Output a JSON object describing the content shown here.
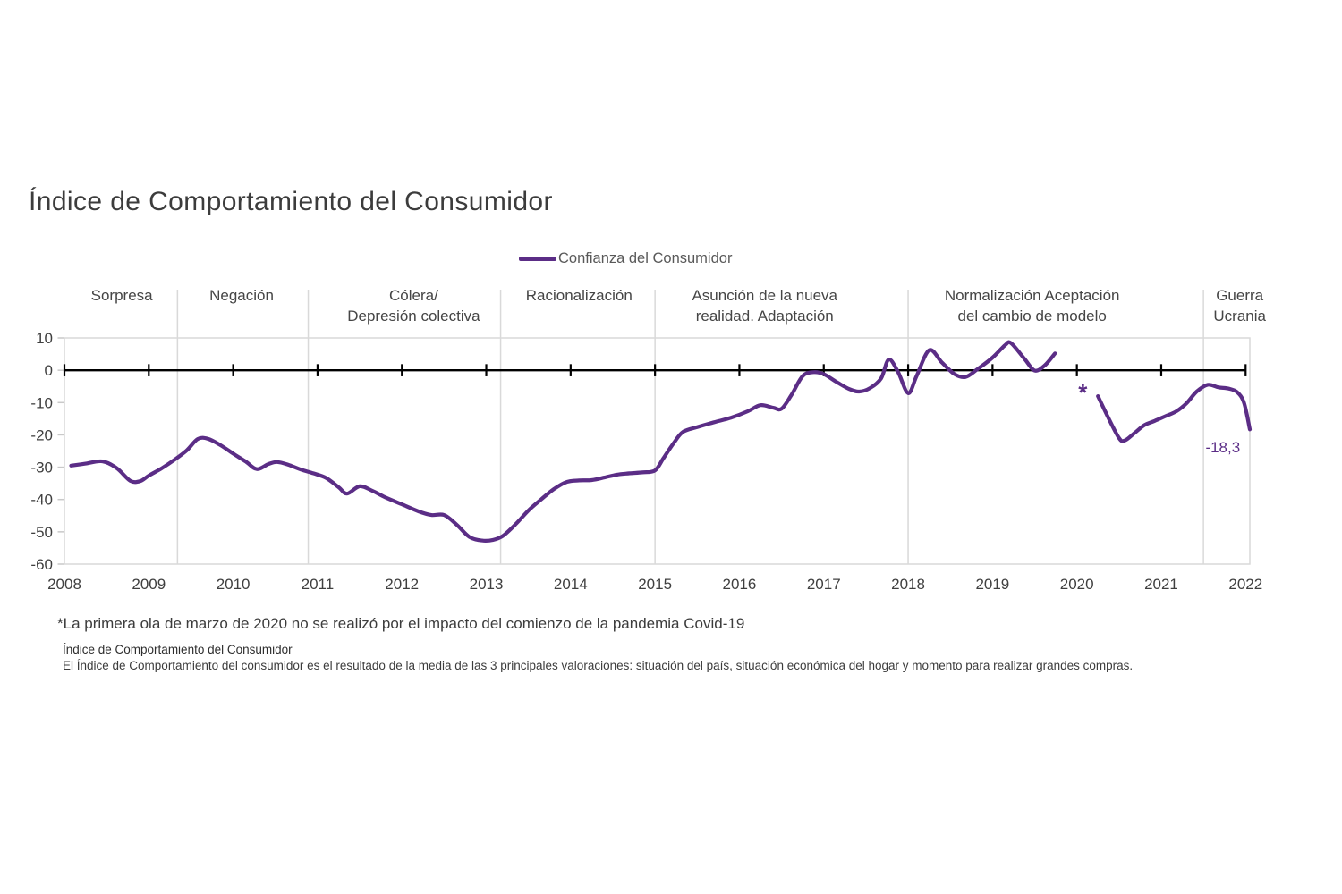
{
  "title": "Índice de Comportamiento del Consumidor",
  "legend": {
    "label": "Confianza del Consumidor"
  },
  "colors": {
    "line": "#5b2d86",
    "grid": "#d9d9d9",
    "tick": "#c9c9c9",
    "axis": "#000000",
    "label_text": "#3f3f3f"
  },
  "footnotes": {
    "covid_note": "*La primera ola de marzo de 2020 no se realizó por el impacto del comienzo de la pandemia Covid-19",
    "definition_title": "Índice de Comportamiento del Consumidor",
    "definition_body": "El Índice de Comportamiento del consumidor es el resultado de la media de las 3 principales valoraciones: situación del país, situación económica del hogar y momento para realizar grandes compras."
  },
  "chart_data": {
    "type": "line",
    "title": "Índice de Comportamiento del Consumidor",
    "xlabel": "",
    "ylabel": "",
    "x_range": [
      2008,
      2022.05
    ],
    "y_range": [
      -60,
      10
    ],
    "y_ticks": [
      10,
      0,
      -10,
      -20,
      -30,
      -40,
      -50,
      -60
    ],
    "x_ticks": [
      2008,
      2009,
      2010,
      2011,
      2012,
      2013,
      2014,
      2015,
      2016,
      2017,
      2018,
      2019,
      2020,
      2021,
      2022
    ],
    "grid": "vertical-phase-boundaries-only",
    "legend_position": "top-center",
    "last_value_label": "-18,3",
    "phases": [
      {
        "label_lines": [
          "Sorpresa"
        ],
        "start": 2008,
        "end": 2009.34,
        "label_center": 2008.68
      },
      {
        "label_lines": [
          "Negación"
        ],
        "start": 2009.34,
        "end": 2010.89,
        "label_center": 2010.1
      },
      {
        "label_lines": [
          "Cólera/",
          "Depresión colectiva"
        ],
        "start": 2010.89,
        "end": 2013.17,
        "label_center": 2012.14
      },
      {
        "label_lines": [
          "Racionalización"
        ],
        "start": 2013.17,
        "end": 2015.0,
        "label_center": 2014.1
      },
      {
        "label_lines": [
          "Asunción de la nueva",
          "realidad. Adaptación"
        ],
        "start": 2015.0,
        "end": 2018.0,
        "label_center": 2016.3
      },
      {
        "label_lines": [
          "Normalización Aceptación",
          "del cambio de modelo"
        ],
        "start": 2018.0,
        "end": 2021.5,
        "label_center": 2019.47
      },
      {
        "label_lines": [
          "Guerra",
          "Ucrania"
        ],
        "start": 2021.5,
        "end": 2022.05,
        "label_center": 2021.93
      }
    ],
    "series": [
      {
        "name": "Confianza del Consumidor",
        "color": "#5b2d86",
        "segments": [
          [
            [
              2008.08,
              -29.5
            ],
            [
              2008.25,
              -28.9
            ],
            [
              2008.45,
              -28.2
            ],
            [
              2008.62,
              -30.3
            ],
            [
              2008.78,
              -34.2
            ],
            [
              2008.9,
              -34.3
            ],
            [
              2009.0,
              -32.6
            ],
            [
              2009.15,
              -30.4
            ],
            [
              2009.3,
              -27.8
            ],
            [
              2009.45,
              -24.8
            ],
            [
              2009.58,
              -21.3
            ],
            [
              2009.7,
              -21.2
            ],
            [
              2009.85,
              -23.2
            ],
            [
              2010.0,
              -25.8
            ],
            [
              2010.15,
              -28.3
            ],
            [
              2010.28,
              -30.6
            ],
            [
              2010.42,
              -29.0
            ],
            [
              2010.52,
              -28.4
            ],
            [
              2010.65,
              -29.2
            ],
            [
              2010.8,
              -30.7
            ],
            [
              2010.95,
              -31.9
            ],
            [
              2011.1,
              -33.3
            ],
            [
              2011.25,
              -36.2
            ],
            [
              2011.35,
              -38.2
            ],
            [
              2011.5,
              -35.9
            ],
            [
              2011.65,
              -37.3
            ],
            [
              2011.8,
              -39.3
            ],
            [
              2012.0,
              -41.5
            ],
            [
              2012.2,
              -43.7
            ],
            [
              2012.35,
              -44.8
            ],
            [
              2012.5,
              -44.8
            ],
            [
              2012.65,
              -47.8
            ],
            [
              2012.8,
              -51.6
            ],
            [
              2012.95,
              -52.7
            ],
            [
              2013.08,
              -52.5
            ],
            [
              2013.2,
              -51.2
            ],
            [
              2013.35,
              -47.6
            ],
            [
              2013.5,
              -43.4
            ],
            [
              2013.65,
              -40.0
            ],
            [
              2013.8,
              -36.8
            ],
            [
              2013.95,
              -34.6
            ],
            [
              2014.1,
              -34.1
            ],
            [
              2014.25,
              -34.0
            ],
            [
              2014.4,
              -33.2
            ],
            [
              2014.55,
              -32.3
            ],
            [
              2014.7,
              -31.9
            ],
            [
              2014.85,
              -31.6
            ],
            [
              2015.0,
              -31.0
            ],
            [
              2015.1,
              -27.2
            ],
            [
              2015.22,
              -22.6
            ],
            [
              2015.33,
              -19.1
            ],
            [
              2015.5,
              -17.6
            ],
            [
              2015.7,
              -16.1
            ],
            [
              2015.9,
              -14.7
            ],
            [
              2016.1,
              -12.7
            ],
            [
              2016.25,
              -10.8
            ],
            [
              2016.4,
              -11.6
            ],
            [
              2016.5,
              -11.9
            ],
            [
              2016.62,
              -7.5
            ],
            [
              2016.75,
              -1.8
            ],
            [
              2016.88,
              -0.6
            ],
            [
              2017.0,
              -1.2
            ],
            [
              2017.15,
              -3.6
            ],
            [
              2017.3,
              -5.8
            ],
            [
              2017.42,
              -6.6
            ],
            [
              2017.55,
              -5.5
            ],
            [
              2017.68,
              -2.5
            ],
            [
              2017.77,
              3.3
            ],
            [
              2017.88,
              -0.5
            ],
            [
              2018.0,
              -7.1
            ],
            [
              2018.1,
              -1.8
            ],
            [
              2018.25,
              6.2
            ],
            [
              2018.4,
              2.4
            ],
            [
              2018.55,
              -1.2
            ],
            [
              2018.68,
              -2.1
            ],
            [
              2018.82,
              0.3
            ],
            [
              2019.0,
              3.9
            ],
            [
              2019.15,
              7.8
            ],
            [
              2019.22,
              8.4
            ],
            [
              2019.38,
              3.5
            ],
            [
              2019.5,
              -0.1
            ],
            [
              2019.62,
              1.5
            ],
            [
              2019.74,
              5.2
            ]
          ],
          [
            [
              2020.25,
              -8.0
            ],
            [
              2020.35,
              -13.5
            ],
            [
              2020.5,
              -21.0
            ],
            [
              2020.57,
              -21.7
            ],
            [
              2020.68,
              -19.5
            ],
            [
              2020.8,
              -17.0
            ],
            [
              2020.92,
              -15.7
            ],
            [
              2021.05,
              -14.2
            ],
            [
              2021.18,
              -12.7
            ],
            [
              2021.3,
              -10.2
            ],
            [
              2021.42,
              -6.6
            ],
            [
              2021.55,
              -4.5
            ],
            [
              2021.68,
              -5.3
            ],
            [
              2021.8,
              -5.7
            ],
            [
              2021.9,
              -6.8
            ],
            [
              2021.98,
              -10.0
            ],
            [
              2022.05,
              -18.3
            ]
          ]
        ]
      }
    ],
    "annotations": [
      {
        "text": "*",
        "x": 2020.07,
        "y": -9.4,
        "size": 26,
        "role": "missing-wave-asterisk"
      },
      {
        "text": "-18,3",
        "x": 2021.73,
        "y": -25.4,
        "size": 17,
        "role": "last-value-label"
      }
    ]
  }
}
